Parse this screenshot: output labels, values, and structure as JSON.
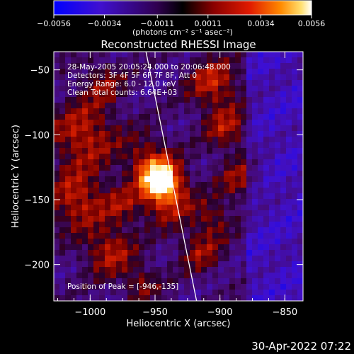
{
  "colorbar": {
    "ticks": [
      "-0.0056",
      "-0.0034",
      "-0.0011",
      "0.0011",
      "0.0034",
      "0.0056"
    ],
    "unit_label": "(photons cm⁻² s⁻¹ asec⁻²)",
    "range": [
      -0.0056,
      0.0056
    ]
  },
  "chart_data": {
    "type": "heatmap",
    "title": "Reconstructed RHESSI Image",
    "xlabel": "Heliocentric X (arcsec)",
    "ylabel": "Heliocentric Y (arcsec)",
    "xlim": [
      -1028,
      -836
    ],
    "ylim": [
      -228,
      -36
    ],
    "xticks": [
      -1000,
      -950,
      -900,
      -850
    ],
    "yticks": [
      -50,
      -100,
      -150,
      -200
    ],
    "xtick_labels": [
      "−1000",
      "−950",
      "−900",
      "−850"
    ],
    "ytick_labels": [
      "−50",
      "−100",
      "−150",
      "−200"
    ],
    "annotations": [
      "28-May-2005 20:05:24.000 to 20:06:48.000",
      "Detectors: 3F 4F 5F 6F 7F 8F, Att 0",
      "Energy Range: 6.0 - 12.0 keV",
      "Clean     Total counts: 6.64E+03"
    ],
    "peak_label": "Position of Peak = [-946,-135]",
    "peak": [
      -946,
      -135
    ],
    "limb_line": [
      [
        -957,
        -36
      ],
      [
        -918,
        -228
      ]
    ],
    "colors": {
      "background": "#000000",
      "limb": "#ffffff",
      "frame": "#ffffff"
    }
  },
  "timestamp": "30-Apr-2022 07:22"
}
